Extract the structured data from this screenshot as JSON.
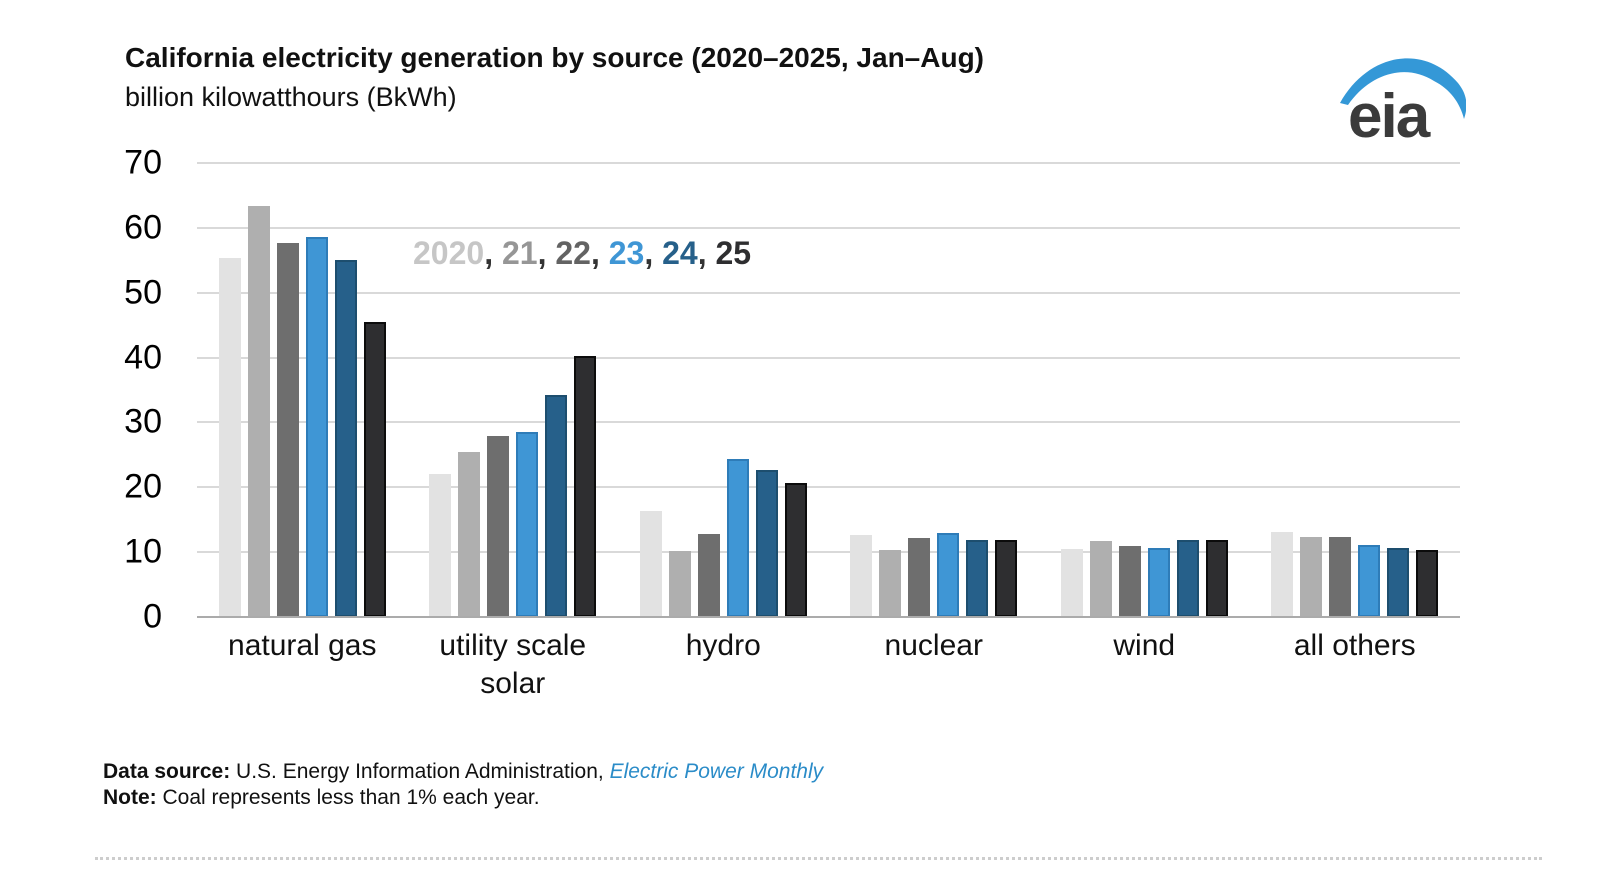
{
  "chart_data": {
    "type": "bar",
    "title": "California electricity generation by source (2020–2025, Jan–Aug)",
    "subtitle": "billion kilowatthours (BkWh)",
    "xlabel": "",
    "ylabel": "billion kilowatthours (BkWh)",
    "categories": [
      "natural gas",
      "utility scale solar",
      "hydro",
      "nuclear",
      "wind",
      "all others"
    ],
    "series": [
      {
        "name": "2020",
        "color": "#e2e2e2",
        "legend_color": "#c6c6c6",
        "values": [
          55.4,
          22.0,
          16.3,
          12.6,
          10.5,
          13.1
        ]
      },
      {
        "name": "21",
        "color": "#afafaf",
        "legend_color": "#969696",
        "values": [
          63.3,
          25.4,
          10.2,
          10.4,
          11.7,
          12.3
        ]
      },
      {
        "name": "22",
        "color": "#6e6e6e",
        "legend_color": "#636363",
        "values": [
          57.7,
          27.9,
          12.8,
          12.2,
          11.0,
          12.3
        ]
      },
      {
        "name": "23",
        "color": "#3f96d5",
        "border": "#2e7cb8",
        "legend_color": "#3f96d5",
        "values": [
          58.6,
          28.5,
          24.3,
          13.0,
          10.6,
          11.1
        ]
      },
      {
        "name": "24",
        "color": "#26608a",
        "border": "#1d4e6e",
        "legend_color": "#26608a",
        "values": [
          55.0,
          34.3,
          22.6,
          11.9,
          11.8,
          10.6
        ]
      },
      {
        "name": "25",
        "color": "#2e2e30",
        "border": "#0c0c0c",
        "legend_color": "#2e2e30",
        "values": [
          45.5,
          40.2,
          20.7,
          11.8,
          11.8,
          10.4
        ]
      }
    ],
    "y_ticks": [
      70,
      60,
      50,
      40,
      30,
      20,
      10,
      0
    ],
    "ylim": [
      0,
      70
    ],
    "grid": "horizontal",
    "legend_position": "inside-top-left",
    "legend_separator": ", "
  },
  "logo": {
    "text": "eia",
    "text_color": "#3b3b3b",
    "swoosh_color": "#3498d7"
  },
  "footer": {
    "data_source_label": "Data source:",
    "data_source_text": " U.S. Energy Information Administration, ",
    "data_source_link": "Electric Power Monthly",
    "link_color": "#2b8cc8",
    "note_label": "Note:",
    "note_text": " Coal represents less than 1% each year."
  }
}
